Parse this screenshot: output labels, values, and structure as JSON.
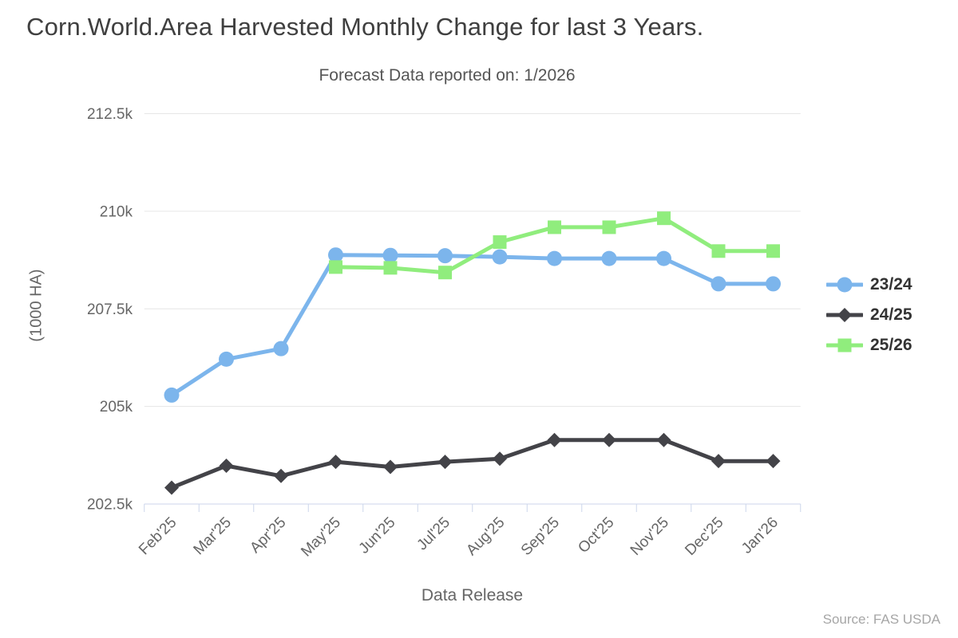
{
  "header": {
    "title": "Corn.World.Area Harvested Monthly Change for last 3 Years.",
    "subtitle": "Forecast Data reported on: 1/2026"
  },
  "footer": {
    "source": "Source: FAS USDA"
  },
  "colors": {
    "grid": "#e6e6e6",
    "axis_line": "#ccd6eb",
    "tick_label": "#666666",
    "title_text": "#3f3f3f",
    "subtitle_text": "#555555",
    "legend_text": "#333333",
    "source_text": "#a6a6a6"
  },
  "chart_data": {
    "type": "line",
    "title": "Corn.World.Area Harvested Monthly Change for last 3 Years.",
    "subtitle": "Forecast Data reported on: 1/2026",
    "xlabel": "Data Release",
    "ylabel": "(1000 HA)",
    "grid": true,
    "legend_position": "right",
    "x_label_rotation": -45,
    "categories": [
      "Feb'25",
      "Mar'25",
      "Apr'25",
      "May'25",
      "Jun'25",
      "Jul'25",
      "Aug'25",
      "Sep'25",
      "Oct'25",
      "Nov'25",
      "Dec'25",
      "Jan'26"
    ],
    "ylim": [
      202500,
      212500
    ],
    "y_ticks": [
      {
        "value": 202500,
        "label": "202.5k"
      },
      {
        "value": 205000,
        "label": "205k"
      },
      {
        "value": 207500,
        "label": "207.5k"
      },
      {
        "value": 210000,
        "label": "210k"
      },
      {
        "value": 212500,
        "label": "212.5k"
      }
    ],
    "series": [
      {
        "name": "23/24",
        "color": "#7cb5ec",
        "marker": "circle",
        "values": [
          205290,
          206210,
          206480,
          208880,
          208870,
          208860,
          208830,
          208790,
          208790,
          208790,
          208140,
          208140
        ]
      },
      {
        "name": "24/25",
        "color": "#434348",
        "marker": "diamond",
        "values": [
          202920,
          203480,
          203220,
          203580,
          203450,
          203580,
          203660,
          204140,
          204140,
          204140,
          203600,
          203600
        ]
      },
      {
        "name": "25/26",
        "color": "#90ed7d",
        "marker": "square",
        "values": [
          null,
          null,
          null,
          208570,
          208550,
          208430,
          209210,
          209590,
          209590,
          209820,
          208980,
          208980
        ]
      }
    ]
  }
}
